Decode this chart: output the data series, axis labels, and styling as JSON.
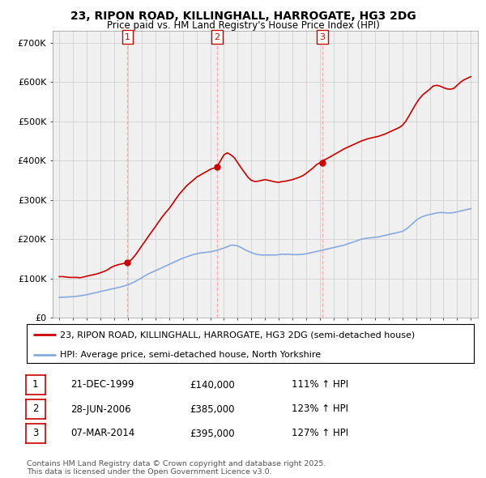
{
  "title": "23, RIPON ROAD, KILLINGHALL, HARROGATE, HG3 2DG",
  "subtitle": "Price paid vs. HM Land Registry's House Price Index (HPI)",
  "ylim": [
    0,
    730000
  ],
  "yticks": [
    0,
    100000,
    200000,
    300000,
    400000,
    500000,
    600000,
    700000
  ],
  "ytick_labels": [
    "£0",
    "£100K",
    "£200K",
    "£300K",
    "£400K",
    "£500K",
    "£600K",
    "£700K"
  ],
  "xlim_low": 1994.5,
  "xlim_high": 2025.5,
  "sale_dates": [
    1999.97,
    2006.49,
    2014.18
  ],
  "sale_prices": [
    140000,
    385000,
    395000
  ],
  "sale_labels": [
    "1",
    "2",
    "3"
  ],
  "sale_date_strs": [
    "21-DEC-1999",
    "28-JUN-2006",
    "07-MAR-2014"
  ],
  "sale_price_strs": [
    "£140,000",
    "£385,000",
    "£395,000"
  ],
  "sale_hpi_strs": [
    "111% ↑ HPI",
    "123% ↑ HPI",
    "127% ↑ HPI"
  ],
  "line_color_property": "#cc0000",
  "line_color_hpi": "#88aadd",
  "vline_color": "#ffaaaa",
  "bg_color": "#f0f0f0",
  "grid_color": "#cccccc",
  "legend_label_property": "23, RIPON ROAD, KILLINGHALL, HARROGATE, HG3 2DG (semi-detached house)",
  "legend_label_hpi": "HPI: Average price, semi-detached house, North Yorkshire",
  "footer": "Contains HM Land Registry data © Crown copyright and database right 2025.\nThis data is licensed under the Open Government Licence v3.0.",
  "prop_years": [
    1995,
    1995.25,
    1995.5,
    1995.75,
    1996,
    1996.25,
    1996.5,
    1996.75,
    1997,
    1997.25,
    1997.5,
    1997.75,
    1998,
    1998.25,
    1998.5,
    1998.75,
    1999,
    1999.25,
    1999.5,
    1999.75,
    1999.97,
    2000.25,
    2000.5,
    2000.75,
    2001,
    2001.25,
    2001.5,
    2001.75,
    2002,
    2002.25,
    2002.5,
    2002.75,
    2003,
    2003.25,
    2003.5,
    2003.75,
    2004,
    2004.25,
    2004.5,
    2004.75,
    2005,
    2005.25,
    2005.5,
    2005.75,
    2006,
    2006.25,
    2006.49,
    2006.75,
    2007,
    2007.25,
    2007.5,
    2007.75,
    2008,
    2008.25,
    2008.5,
    2008.75,
    2009,
    2009.25,
    2009.5,
    2009.75,
    2010,
    2010.25,
    2010.5,
    2010.75,
    2011,
    2011.25,
    2011.5,
    2011.75,
    2012,
    2012.25,
    2012.5,
    2012.75,
    2013,
    2013.25,
    2013.5,
    2013.75,
    2014,
    2014.18,
    2014.5,
    2014.75,
    2015,
    2015.25,
    2015.5,
    2015.75,
    2016,
    2016.25,
    2016.5,
    2016.75,
    2017,
    2017.25,
    2017.5,
    2017.75,
    2018,
    2018.25,
    2018.5,
    2018.75,
    2019,
    2019.25,
    2019.5,
    2019.75,
    2020,
    2020.25,
    2020.5,
    2020.75,
    2021,
    2021.25,
    2021.5,
    2021.75,
    2022,
    2022.25,
    2022.5,
    2022.75,
    2023,
    2023.25,
    2023.5,
    2023.75,
    2024,
    2024.25,
    2024.5,
    2024.75,
    2025
  ],
  "prop_prices": [
    105000,
    105000,
    104000,
    103000,
    103000,
    103000,
    102000,
    104000,
    106000,
    108000,
    110000,
    112000,
    115000,
    118000,
    122000,
    128000,
    132000,
    135000,
    137000,
    139000,
    140000,
    148000,
    158000,
    170000,
    183000,
    195000,
    208000,
    220000,
    232000,
    245000,
    257000,
    268000,
    278000,
    290000,
    303000,
    315000,
    325000,
    335000,
    343000,
    350000,
    358000,
    363000,
    368000,
    373000,
    378000,
    381000,
    385000,
    400000,
    415000,
    420000,
    415000,
    408000,
    395000,
    382000,
    370000,
    358000,
    350000,
    347000,
    348000,
    350000,
    352000,
    350000,
    348000,
    346000,
    345000,
    347000,
    348000,
    350000,
    352000,
    355000,
    358000,
    362000,
    368000,
    375000,
    382000,
    390000,
    395000,
    400000,
    405000,
    410000,
    415000,
    420000,
    425000,
    430000,
    434000,
    438000,
    442000,
    446000,
    450000,
    453000,
    456000,
    458000,
    460000,
    462000,
    465000,
    468000,
    472000,
    476000,
    480000,
    484000,
    490000,
    500000,
    515000,
    530000,
    545000,
    558000,
    568000,
    575000,
    582000,
    590000,
    592000,
    590000,
    586000,
    583000,
    582000,
    584000,
    592000,
    600000,
    606000,
    610000,
    614000
  ],
  "hpi_years": [
    1995,
    1995.25,
    1995.5,
    1995.75,
    1996,
    1996.25,
    1996.5,
    1996.75,
    1997,
    1997.25,
    1997.5,
    1997.75,
    1998,
    1998.25,
    1998.5,
    1998.75,
    1999,
    1999.25,
    1999.5,
    1999.75,
    2000,
    2000.25,
    2000.5,
    2000.75,
    2001,
    2001.25,
    2001.5,
    2001.75,
    2002,
    2002.25,
    2002.5,
    2002.75,
    2003,
    2003.25,
    2003.5,
    2003.75,
    2004,
    2004.25,
    2004.5,
    2004.75,
    2005,
    2005.25,
    2005.5,
    2005.75,
    2006,
    2006.25,
    2006.5,
    2006.75,
    2007,
    2007.25,
    2007.5,
    2007.75,
    2008,
    2008.25,
    2008.5,
    2008.75,
    2009,
    2009.25,
    2009.5,
    2009.75,
    2010,
    2010.25,
    2010.5,
    2010.75,
    2011,
    2011.25,
    2011.5,
    2011.75,
    2012,
    2012.25,
    2012.5,
    2012.75,
    2013,
    2013.25,
    2013.5,
    2013.75,
    2014,
    2014.25,
    2014.5,
    2014.75,
    2015,
    2015.25,
    2015.5,
    2015.75,
    2016,
    2016.25,
    2016.5,
    2016.75,
    2017,
    2017.25,
    2017.5,
    2017.75,
    2018,
    2018.25,
    2018.5,
    2018.75,
    2019,
    2019.25,
    2019.5,
    2019.75,
    2020,
    2020.25,
    2020.5,
    2020.75,
    2021,
    2021.25,
    2021.5,
    2021.75,
    2022,
    2022.25,
    2022.5,
    2022.75,
    2023,
    2023.25,
    2023.5,
    2023.75,
    2024,
    2024.25,
    2024.5,
    2024.75,
    2025
  ],
  "hpi_prices": [
    52000,
    52500,
    53000,
    53500,
    54000,
    55000,
    56000,
    57500,
    59000,
    61000,
    63000,
    65000,
    67000,
    69000,
    71000,
    73000,
    75000,
    77000,
    79000,
    81500,
    84000,
    88000,
    92000,
    97000,
    102000,
    107000,
    112000,
    116000,
    120000,
    124000,
    128000,
    132000,
    136000,
    140000,
    144000,
    148000,
    152000,
    155000,
    158000,
    161000,
    163000,
    165000,
    166000,
    167000,
    168000,
    170000,
    172000,
    175000,
    178000,
    181000,
    185000,
    185000,
    183000,
    179000,
    174000,
    170000,
    166000,
    163000,
    161000,
    160000,
    160000,
    160000,
    160000,
    160000,
    161000,
    162000,
    162000,
    162000,
    161000,
    161000,
    161000,
    162000,
    163000,
    165000,
    167000,
    169000,
    171000,
    173000,
    175000,
    177000,
    179000,
    181000,
    183000,
    185000,
    188000,
    191000,
    194000,
    197000,
    200000,
    202000,
    203000,
    204000,
    205000,
    206000,
    208000,
    210000,
    212000,
    214000,
    216000,
    218000,
    220000,
    225000,
    232000,
    240000,
    248000,
    254000,
    258000,
    261000,
    263000,
    265000,
    267000,
    268000,
    268000,
    267000,
    267000,
    268000,
    270000,
    272000,
    274000,
    276000,
    278000
  ]
}
